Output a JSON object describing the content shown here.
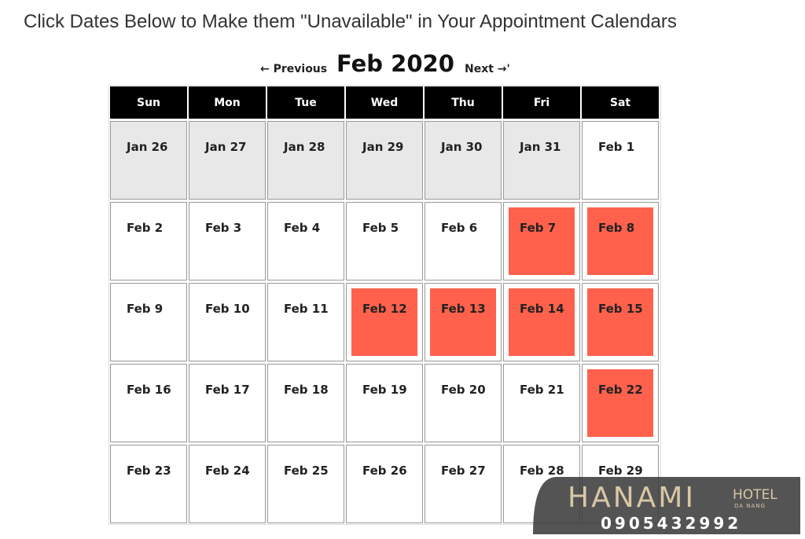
{
  "header": {
    "title": "Click Dates Below to Make them \"Unavailable\" in Your Appointment Calendars"
  },
  "nav": {
    "previous": "← Previous",
    "month": "Feb 2020",
    "next": "Next →'"
  },
  "calendar": {
    "weekdays": [
      "Sun",
      "Mon",
      "Tue",
      "Wed",
      "Thu",
      "Fri",
      "Sat"
    ],
    "weeks": [
      [
        {
          "label": "Jan 26",
          "state": "outside"
        },
        {
          "label": "Jan 27",
          "state": "outside"
        },
        {
          "label": "Jan 28",
          "state": "outside"
        },
        {
          "label": "Jan 29",
          "state": "outside"
        },
        {
          "label": "Jan 30",
          "state": "outside"
        },
        {
          "label": "Jan 31",
          "state": "outside"
        },
        {
          "label": "Feb 1",
          "state": "available"
        }
      ],
      [
        {
          "label": "Feb 2",
          "state": "available"
        },
        {
          "label": "Feb 3",
          "state": "available"
        },
        {
          "label": "Feb 4",
          "state": "available"
        },
        {
          "label": "Feb 5",
          "state": "available"
        },
        {
          "label": "Feb 6",
          "state": "available"
        },
        {
          "label": "Feb 7",
          "state": "unavailable"
        },
        {
          "label": "Feb 8",
          "state": "unavailable"
        }
      ],
      [
        {
          "label": "Feb 9",
          "state": "available"
        },
        {
          "label": "Feb 10",
          "state": "available"
        },
        {
          "label": "Feb 11",
          "state": "available"
        },
        {
          "label": "Feb 12",
          "state": "unavailable"
        },
        {
          "label": "Feb 13",
          "state": "unavailable"
        },
        {
          "label": "Feb 14",
          "state": "unavailable"
        },
        {
          "label": "Feb 15",
          "state": "unavailable"
        }
      ],
      [
        {
          "label": "Feb 16",
          "state": "available"
        },
        {
          "label": "Feb 17",
          "state": "available"
        },
        {
          "label": "Feb 18",
          "state": "available"
        },
        {
          "label": "Feb 19",
          "state": "available"
        },
        {
          "label": "Feb 20",
          "state": "available"
        },
        {
          "label": "Feb 21",
          "state": "available"
        },
        {
          "label": "Feb 22",
          "state": "unavailable"
        }
      ],
      [
        {
          "label": "Feb 23",
          "state": "available"
        },
        {
          "label": "Feb 24",
          "state": "available"
        },
        {
          "label": "Feb 25",
          "state": "available"
        },
        {
          "label": "Feb 26",
          "state": "available"
        },
        {
          "label": "Feb 27",
          "state": "available"
        },
        {
          "label": "Feb 28",
          "state": "available"
        },
        {
          "label": "Feb 29",
          "state": "available"
        }
      ]
    ]
  },
  "watermark": {
    "brand": "HANAMI",
    "hotel": "HOTEL",
    "city": "DA NANG",
    "phone": "0905432992"
  }
}
